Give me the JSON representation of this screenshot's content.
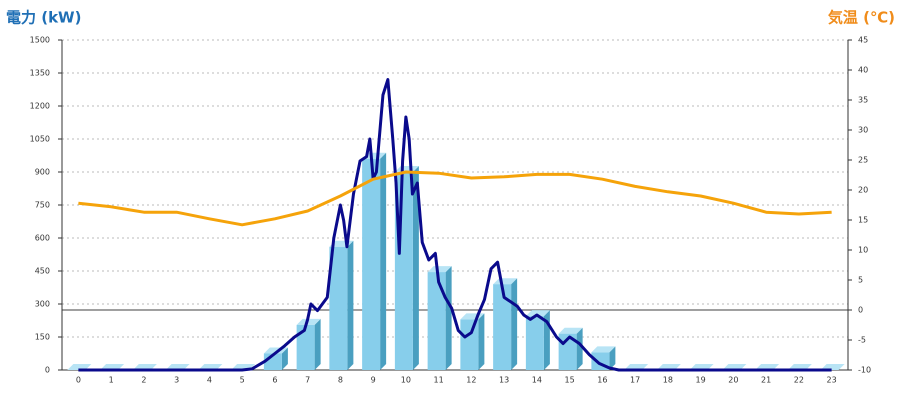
{
  "chart_data": {
    "type": "bar",
    "title": "電力 (kW)",
    "y2_title": "気温 (℃)",
    "categories": [
      "0",
      "1",
      "2",
      "3",
      "4",
      "5",
      "6",
      "7",
      "8",
      "9",
      "10",
      "11",
      "12",
      "13",
      "14",
      "15",
      "16",
      "17",
      "18",
      "19",
      "20",
      "21",
      "22",
      "23"
    ],
    "ylim": [
      0,
      1500
    ],
    "yticks": [
      0,
      150,
      300,
      450,
      600,
      750,
      900,
      1050,
      1200,
      1350,
      1500
    ],
    "y2lim": [
      -10,
      45
    ],
    "y2ticks": [
      -10,
      -5,
      0,
      5,
      10,
      15,
      20,
      25,
      30,
      35,
      40,
      45
    ],
    "grid": true,
    "series": [
      {
        "type": "bar",
        "color": "#87ceeb",
        "values": [
          0,
          0,
          0,
          0,
          0,
          0,
          75,
          205,
          560,
          960,
          900,
          445,
          230,
          390,
          245,
          165,
          80,
          0,
          0,
          0,
          0,
          0,
          0,
          0
        ]
      },
      {
        "type": "line",
        "color": "#0a0a8c",
        "x": [
          0,
          5,
          5.3,
          5.7,
          6,
          6.3,
          6.6,
          6.9,
          7,
          7.1,
          7.3,
          7.6,
          7.8,
          8,
          8.1,
          8.2,
          8.4,
          8.6,
          8.8,
          8.9,
          9,
          9.1,
          9.3,
          9.45,
          9.6,
          9.7,
          9.8,
          9.9,
          10,
          10.1,
          10.2,
          10.35,
          10.5,
          10.7,
          10.9,
          11,
          11.2,
          11.4,
          11.6,
          11.8,
          12,
          12.2,
          12.4,
          12.6,
          12.8,
          13,
          13.2,
          13.4,
          13.6,
          13.8,
          14,
          14.3,
          14.6,
          14.8,
          15,
          15.3,
          15.6,
          15.9,
          16.2,
          16.5,
          23
        ],
        "values": [
          0,
          0,
          5,
          40,
          75,
          110,
          150,
          180,
          230,
          300,
          270,
          330,
          600,
          750,
          680,
          560,
          800,
          950,
          970,
          1050,
          870,
          900,
          1250,
          1320,
          1050,
          850,
          530,
          950,
          1150,
          1050,
          800,
          850,
          580,
          500,
          530,
          400,
          330,
          280,
          180,
          150,
          170,
          250,
          320,
          460,
          490,
          330,
          310,
          290,
          250,
          230,
          250,
          220,
          150,
          120,
          150,
          120,
          70,
          30,
          10,
          0,
          0
        ]
      },
      {
        "type": "line",
        "axis": "y2",
        "color": "#f5a30a",
        "values": [
          17.8,
          17.2,
          16.3,
          16.3,
          15.2,
          14.2,
          15.2,
          16.5,
          19,
          21.8,
          23,
          22.8,
          22,
          22.2,
          22.6,
          22.6,
          21.8,
          20.6,
          19.7,
          19,
          17.8,
          16.3,
          16,
          16.3
        ]
      }
    ]
  }
}
